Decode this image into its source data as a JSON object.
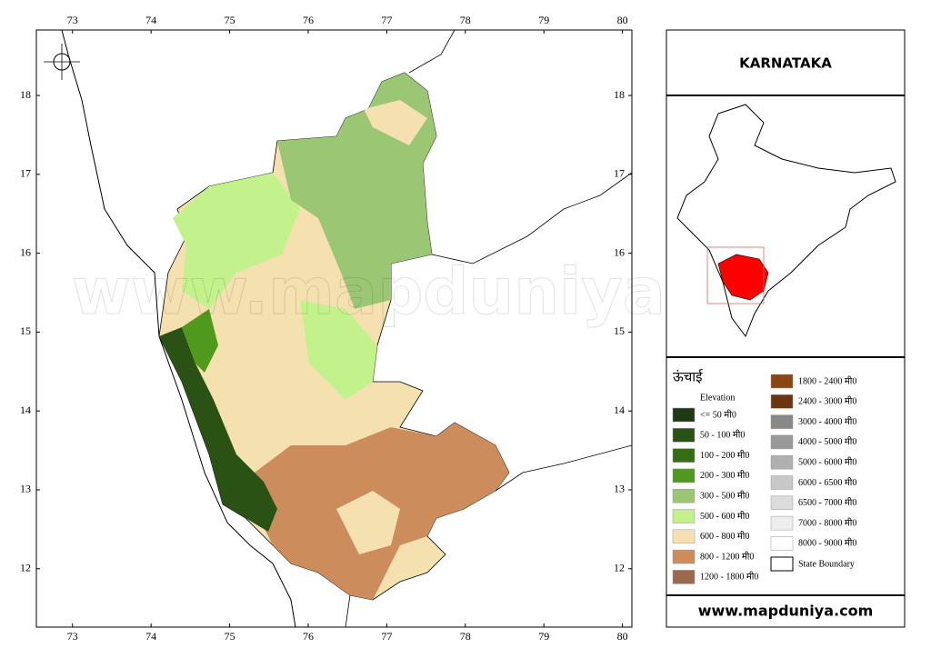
{
  "map": {
    "xlim": [
      72.54,
      80.12
    ],
    "ylim": [
      11.26,
      18.83
    ],
    "xticks": [
      73,
      74,
      75,
      76,
      77,
      78,
      79,
      80
    ],
    "yticks": [
      12,
      13,
      14,
      15,
      16,
      17,
      18
    ],
    "watermark": "www.mapduniya.com"
  },
  "title": "KARNATAKA",
  "legend": {
    "heading": "ऊंचाई",
    "subheading": "Elevation",
    "items": [
      {
        "label": "<= 50 मी0",
        "color": "#1f3a12"
      },
      {
        "label": "50 - 100 मी0",
        "color": "#2a5214"
      },
      {
        "label": "100 - 200 मी0",
        "color": "#356e12"
      },
      {
        "label": "200 - 300 मी0",
        "color": "#4f9a1c"
      },
      {
        "label": "300 - 500 मी0",
        "color": "#9bc774"
      },
      {
        "label": "500 - 600 मी0",
        "color": "#c3f28d"
      },
      {
        "label": "600 - 800 मी0",
        "color": "#f5e0b0"
      },
      {
        "label": "800 - 1200 मी0",
        "color": "#cd8c5c"
      },
      {
        "label": "1200 - 1800 मी0",
        "color": "#9b6a4c"
      },
      {
        "label": "1800 - 2400 मी0",
        "color": "#8b4513"
      },
      {
        "label": "2400 - 3000 मी0",
        "color": "#6b3510"
      },
      {
        "label": "3000 - 4000 मी0",
        "color": "#888888"
      },
      {
        "label": "4000 - 5000 मी0",
        "color": "#999999"
      },
      {
        "label": "5000 - 6000 मी0",
        "color": "#b0b0b0"
      },
      {
        "label": "6000 - 6500 मी0",
        "color": "#c8c8c8"
      },
      {
        "label": "6500 - 7000 मी0",
        "color": "#dcdcdc"
      },
      {
        "label": "7000 - 8000 मी0",
        "color": "#eeeeee"
      },
      {
        "label": "8000 - 9000 मी0",
        "color": "#ffffff"
      }
    ],
    "boundary": "State Boundary"
  },
  "footer": "www.mapduniya.com"
}
